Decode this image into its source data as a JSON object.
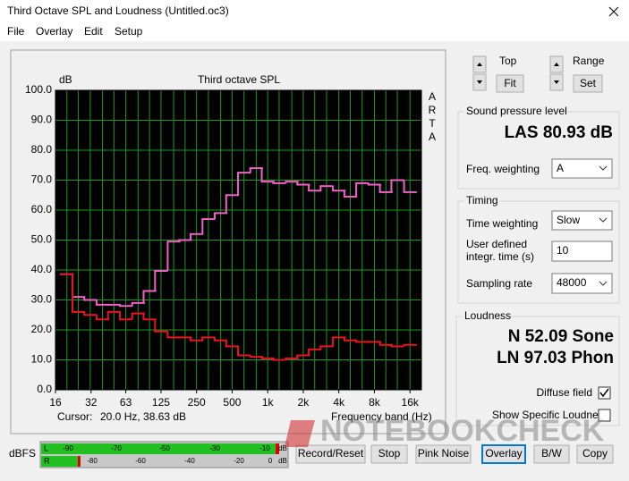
{
  "window": {
    "title": "Third Octave SPL and Loudness (Untitled.oc3)",
    "menu": [
      "File",
      "Overlay",
      "Edit",
      "Setup"
    ]
  },
  "chart_data": {
    "type": "step",
    "title": "Third octave SPL",
    "y_label": "dB",
    "side_label": "ARTA",
    "x_label": "Frequency band (Hz)",
    "cursor_label": "Cursor:",
    "cursor": "20.0 Hz, 38.63 dB",
    "x": [
      20,
      25,
      31.5,
      40,
      50,
      63,
      80,
      100,
      125,
      160,
      200,
      250,
      315,
      400,
      500,
      630,
      800,
      1000,
      1250,
      1600,
      2000,
      2500,
      3150,
      4000,
      5000,
      6300,
      8000,
      10000,
      12500,
      16000
    ],
    "series": [
      {
        "color": "#f060c8",
        "values": [
          38.6,
          31,
          30,
          28.4,
          28.4,
          28,
          29,
          33,
          39.7,
          49.5,
          50,
          52,
          57,
          59,
          65,
          72.5,
          74,
          69.5,
          69,
          69.5,
          68.5,
          66.5,
          68,
          66.5,
          64.5,
          69,
          68.5,
          66,
          70,
          66
        ]
      },
      {
        "color": "#e8141e",
        "values": [
          38.6,
          26,
          25,
          23.5,
          26,
          23.5,
          25.5,
          23.5,
          19.5,
          17.5,
          17.5,
          16.5,
          17.5,
          16.5,
          14.5,
          11.5,
          11,
          10.5,
          10,
          10.5,
          11.5,
          13.5,
          14.5,
          17.5,
          16.5,
          16,
          16,
          15,
          14.5,
          15
        ]
      }
    ],
    "xscale": "log",
    "xlim": [
      16,
      20000
    ],
    "xticks": [
      16,
      32,
      63,
      125,
      250,
      500,
      {
        "value": 1000,
        "label": "1k"
      },
      {
        "value": 2000,
        "label": "2k"
      },
      {
        "value": 4000,
        "label": "4k"
      },
      {
        "value": 8000,
        "label": "8k"
      },
      {
        "value": 16000,
        "label": "16k"
      }
    ],
    "ylim": [
      0,
      100
    ],
    "yticks": [
      {
        "value": 0,
        "label": "0.0"
      },
      {
        "value": 10,
        "label": "10.0"
      },
      {
        "value": 20,
        "label": "20.0"
      },
      {
        "value": 30,
        "label": "30.0"
      },
      {
        "value": 40,
        "label": "40.0"
      },
      {
        "value": 50,
        "label": "50.0"
      },
      {
        "value": 60,
        "label": "60.0"
      },
      {
        "value": 70,
        "label": "70.0"
      },
      {
        "value": 80,
        "label": "80.0"
      },
      {
        "value": 90,
        "label": "90.0"
      },
      {
        "value": 100,
        "label": "100.0"
      }
    ],
    "grid": true,
    "grid_color": "#1e9a1e",
    "background": "#000000"
  },
  "controls": {
    "top_label": "Top",
    "fit": "Fit",
    "range_label": "Range",
    "set": "Set",
    "spl": {
      "title": "Sound pressure level",
      "value": "LAS 80.93 dB",
      "freq_weighting_label": "Freq. weighting",
      "freq_weighting": "A"
    },
    "timing": {
      "title": "Timing",
      "time_weighting_label": "Time weighting",
      "time_weighting": "Slow",
      "integr_label_1": "User defined",
      "integr_label_2": "integr. time (s)",
      "integr_time": "10",
      "sampling_rate_label": "Sampling rate",
      "sampling_rate": "48000"
    },
    "loudness": {
      "title": "Loudness",
      "n": "N 52.09 Sone",
      "ln": "LN 97.03 Phon",
      "diffuse_field": "Diffuse field",
      "show_specific": "Show Specific Loudness"
    }
  },
  "meter": {
    "label": "dBFS",
    "channels": [
      "L",
      "R"
    ],
    "scale_top": [
      "-90",
      "-70",
      "-50",
      "-30",
      "-10",
      "dB"
    ],
    "scale_bottom": [
      "-80",
      "-60",
      "-40",
      "-20",
      "0",
      "dB"
    ]
  },
  "buttons": [
    "Record/Reset",
    "Stop",
    "Pink Noise",
    "Overlay",
    "B/W",
    "Copy"
  ],
  "watermark": "NOTEBOOKCHECK"
}
